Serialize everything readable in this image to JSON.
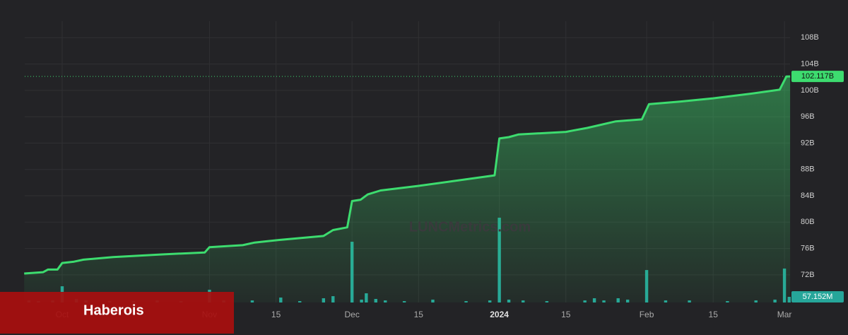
{
  "chart_data": [
    {
      "type": "line",
      "x": [
        -8,
        -4,
        -3,
        -1,
        0,
        2.5,
        4.5,
        10.7,
        21,
        30,
        31,
        38,
        40.5,
        45.7,
        55,
        57,
        60,
        61,
        62.8,
        64.3,
        67,
        75,
        82,
        91,
        92,
        94,
        96,
        106,
        107.5,
        110.5,
        116.5,
        122,
        123.5,
        130,
        137,
        145,
        151,
        152.4,
        153.2
      ],
      "series": [
        {
          "color": "#3ddc6f",
          "values": [
            72.2,
            72.4,
            72.8,
            72.8,
            73.8,
            74.0,
            74.3,
            74.7,
            75.1,
            75.4,
            76.2,
            76.5,
            76.9,
            77.3,
            77.9,
            78.8,
            79.2,
            83.2,
            83.4,
            84.2,
            84.8,
            85.5,
            86.2,
            87.1,
            92.7,
            92.9,
            93.3,
            93.7,
            93.9,
            94.3,
            95.3,
            95.6,
            97.9,
            98.3,
            98.8,
            99.5,
            100.1,
            102.1,
            102.117
          ]
        }
      ],
      "last_label": {
        "value": 102.117,
        "label": "102.117B"
      },
      "xlim": [
        -7.88,
        153.18
      ],
      "xticks": [
        {
          "value": 0,
          "label": "Oct"
        },
        {
          "value": 31,
          "label": "Nov"
        },
        {
          "value": 45,
          "label": "15"
        },
        {
          "value": 61,
          "label": "Dec"
        },
        {
          "value": 75,
          "label": "15"
        },
        {
          "value": 92,
          "label": "2024"
        },
        {
          "value": 106,
          "label": "15"
        },
        {
          "value": 123,
          "label": "Feb"
        },
        {
          "value": 137,
          "label": "15"
        },
        {
          "value": 152,
          "label": "Mar"
        }
      ],
      "ylim": [
        67.8,
        110.5
      ],
      "yticks": [
        {
          "value": 72,
          "label": "72B"
        },
        {
          "value": 76,
          "label": "76B"
        },
        {
          "value": 80,
          "label": "80B"
        },
        {
          "value": 84,
          "label": "84B"
        },
        {
          "value": 88,
          "label": "88B"
        },
        {
          "value": 92,
          "label": "92B"
        },
        {
          "value": 96,
          "label": "96B"
        },
        {
          "value": 100,
          "label": "100B"
        },
        {
          "value": 104,
          "label": "104B"
        },
        {
          "value": 108,
          "label": "108B"
        }
      ],
      "grid": true
    },
    {
      "type": "bar",
      "x": [
        -7,
        -5,
        -2,
        0,
        3,
        5,
        10,
        15,
        20,
        25,
        31,
        34,
        40,
        46,
        50,
        55,
        57,
        61,
        63,
        64,
        66,
        68,
        72,
        78,
        85,
        90,
        92,
        94,
        97,
        102,
        110,
        112,
        114,
        117,
        119,
        123,
        127,
        132,
        140,
        146,
        150,
        152,
        153
      ],
      "values": [
        21,
        14,
        21,
        164,
        36,
        21,
        14,
        14,
        21,
        14,
        129,
        21,
        21,
        50,
        14,
        43,
        64,
        614,
        29,
        93,
        36,
        21,
        14,
        29,
        14,
        21,
        857,
        29,
        21,
        14,
        21,
        43,
        21,
        43,
        29,
        328,
        21,
        21,
        14,
        21,
        29,
        343,
        57.152
      ],
      "color": "#26a69a",
      "last_label": {
        "value": 57.152,
        "label": "57.152M"
      },
      "ylim": [
        0,
        2843
      ]
    }
  ],
  "watermark": "LUNCMetrics.com",
  "banner": "Haberois"
}
